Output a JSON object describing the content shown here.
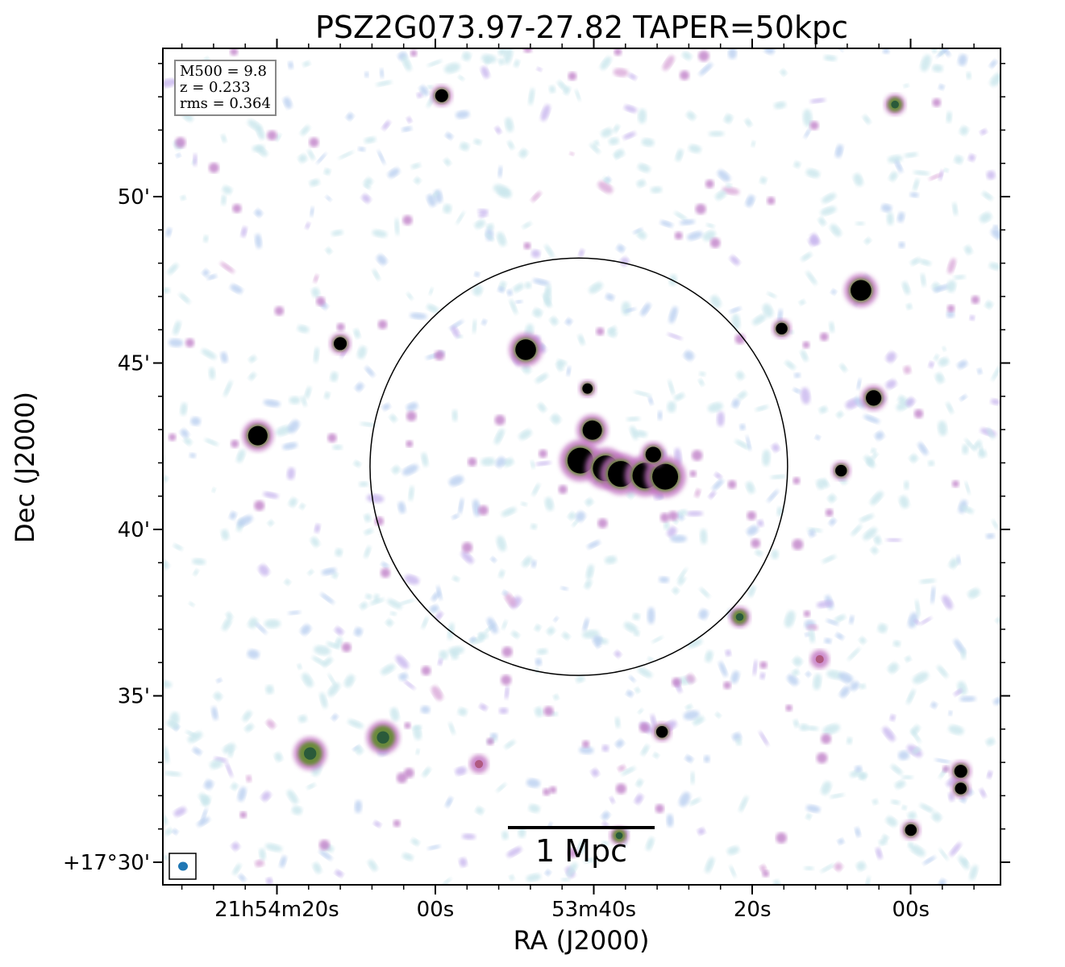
{
  "chart_data": {
    "type": "heatmap",
    "title": "PSZ2G073.97-27.82 TAPER=50kpc",
    "xlabel": "RA (J2000)",
    "ylabel": "Dec (J2000)",
    "x_ticks": [
      "21h54m20s",
      "00s",
      "53m40s",
      "20s",
      "00s"
    ],
    "x_tick_values": [
      "21:54:20",
      "21:54:00",
      "21:53:40",
      "21:53:20",
      "21:53:00"
    ],
    "y_ticks": [
      "50'",
      "45'",
      "40'",
      "35'",
      "+17°30'"
    ],
    "y_tick_values": [
      "17:50",
      "17:45",
      "17:40",
      "17:35",
      "17:30"
    ],
    "xlim": [
      "21:54:26.7",
      "21:52:51.7"
    ],
    "ylim": [
      "17:29:24",
      "17:54:30"
    ],
    "colormap": "cubehelix-like (white → blue → pink → green → black)",
    "annotations": {
      "info_lines": [
        "M500 = 9.8",
        "z = 0.233",
        "rms = 0.364"
      ],
      "scale_bar": "1 Mpc",
      "circle": {
        "ra": "21:53:41.9",
        "dec": "17:41:53",
        "radius_arcmin": 6.27,
        "color": "#000000"
      },
      "beam_color": "#1f77b4"
    },
    "sources": [
      {
        "ra": "21:53:59.2",
        "dec": "17:53:02",
        "peak": "high",
        "size": 1.0
      },
      {
        "ra": "21:53:02.0",
        "dec": "17:52:46",
        "peak": "mid",
        "size": 1.0
      },
      {
        "ra": "21:53:06.3",
        "dec": "17:47:11",
        "peak": "high",
        "size": 1.6
      },
      {
        "ra": "21:53:48.6",
        "dec": "17:45:24",
        "peak": "high",
        "size": 1.6
      },
      {
        "ra": "21:54:12.0",
        "dec": "17:45:35",
        "peak": "high",
        "size": 1.0
      },
      {
        "ra": "21:53:16.3",
        "dec": "17:46:02",
        "peak": "high",
        "size": 0.9
      },
      {
        "ra": "21:53:04.7",
        "dec": "17:43:57",
        "peak": "high",
        "size": 1.2
      },
      {
        "ra": "21:54:22.4",
        "dec": "17:42:49",
        "peak": "high",
        "size": 1.5
      },
      {
        "ra": "21:53:40.8",
        "dec": "17:44:14",
        "peak": "high",
        "size": 0.8
      },
      {
        "ra": "21:53:40.2",
        "dec": "17:42:59",
        "peak": "high",
        "size": 1.5
      },
      {
        "ra": "21:53:41.7",
        "dec": "17:42:04",
        "peak": "high",
        "size": 2.0
      },
      {
        "ra": "21:53:38.5",
        "dec": "17:41:50",
        "peak": "high",
        "size": 2.0
      },
      {
        "ra": "21:53:36.6",
        "dec": "17:41:40",
        "peak": "high",
        "size": 2.0
      },
      {
        "ra": "21:53:33.5",
        "dec": "17:41:37",
        "peak": "high",
        "size": 2.0
      },
      {
        "ra": "21:53:31.0",
        "dec": "17:41:35",
        "peak": "high",
        "size": 2.0
      },
      {
        "ra": "21:53:32.5",
        "dec": "17:42:15",
        "peak": "high",
        "size": 1.2
      },
      {
        "ra": "21:53:08.8",
        "dec": "17:41:46",
        "peak": "high",
        "size": 0.9
      },
      {
        "ra": "21:53:21.6",
        "dec": "17:37:22",
        "peak": "mid",
        "size": 1.0
      },
      {
        "ra": "21:53:31.4",
        "dec": "17:33:55",
        "peak": "high",
        "size": 0.9
      },
      {
        "ra": "21:54:06.6",
        "dec": "17:33:45",
        "peak": "mid",
        "size": 1.6
      },
      {
        "ra": "21:54:15.8",
        "dec": "17:33:16",
        "peak": "mid",
        "size": 1.6
      },
      {
        "ra": "21:52:53.7",
        "dec": "17:32:44",
        "peak": "high",
        "size": 1.0
      },
      {
        "ra": "21:52:53.7",
        "dec": "17:32:13",
        "peak": "high",
        "size": 0.9
      },
      {
        "ra": "21:53:00.0",
        "dec": "17:30:58",
        "peak": "high",
        "size": 0.9
      },
      {
        "ra": "21:53:36.8",
        "dec": "17:30:48",
        "peak": "mid",
        "size": 0.9
      },
      {
        "ra": "21:53:54.5",
        "dec": "17:32:57",
        "peak": "low",
        "size": 0.9
      },
      {
        "ra": "21:53:11.5",
        "dec": "17:36:06",
        "peak": "low",
        "size": 0.9
      }
    ]
  }
}
